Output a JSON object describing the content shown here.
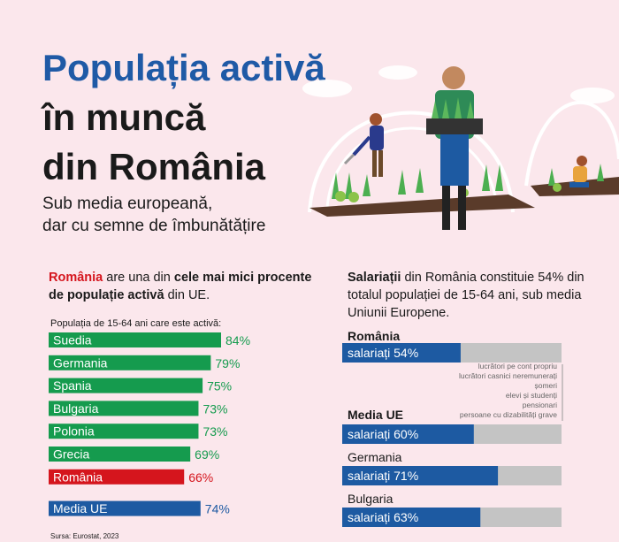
{
  "title": {
    "line1": "Populația activă",
    "line2": "în muncă",
    "line3": "din România",
    "sub1": "Sub media europeană,",
    "sub2": "dar cu semne de îmbunătățire"
  },
  "left_intro": {
    "part1": "România",
    "part2": " are una din ",
    "part3": "cele mai mici procente de populație activă",
    "part4": " din UE."
  },
  "right_intro": {
    "part1": "Salariații",
    "part2": " din România constituie 54% din totalul populației de 15-64 ani, sub media Uniunii Europene."
  },
  "source": "Sursa: Eurostat, 2023",
  "colors": {
    "green": "#159b4e",
    "red": "#d5151d",
    "blue": "#1d5aa2",
    "grey": "#c4c4c4",
    "title_blue": "#1f5aa6"
  },
  "chart_data": [
    {
      "type": "bar",
      "title": "Populația de 15-64 ani care este activă:",
      "categories": [
        "Suedia",
        "Germania",
        "Spania",
        "Bulgaria",
        "Polonia",
        "Grecia",
        "România",
        "Media UE"
      ],
      "values": [
        84,
        79,
        75,
        73,
        73,
        69,
        66,
        74
      ],
      "labels": [
        "84%",
        "79%",
        "75%",
        "73%",
        "73%",
        "69%",
        "66%",
        "74%"
      ],
      "colors": [
        "#159b4e",
        "#159b4e",
        "#159b4e",
        "#159b4e",
        "#159b4e",
        "#159b4e",
        "#d5151d",
        "#1d5aa2"
      ],
      "xlim": [
        0,
        84
      ]
    },
    {
      "type": "bar",
      "categories": [
        "România",
        "Media UE",
        "Germania",
        "Bulgaria"
      ],
      "series": [
        {
          "name": "salariați",
          "values": [
            54,
            60,
            71,
            63
          ]
        }
      ],
      "labels": [
        "salariați 54%",
        "salariați 60%",
        "salariați 71%",
        "salariați 63%"
      ],
      "total": 100,
      "legend_other": [
        "lucrători pe cont propriu",
        "lucrători casnici neremunerați",
        "șomeri",
        "elevi și studenți",
        "pensionari",
        "persoane cu dizabilități grave"
      ]
    }
  ]
}
